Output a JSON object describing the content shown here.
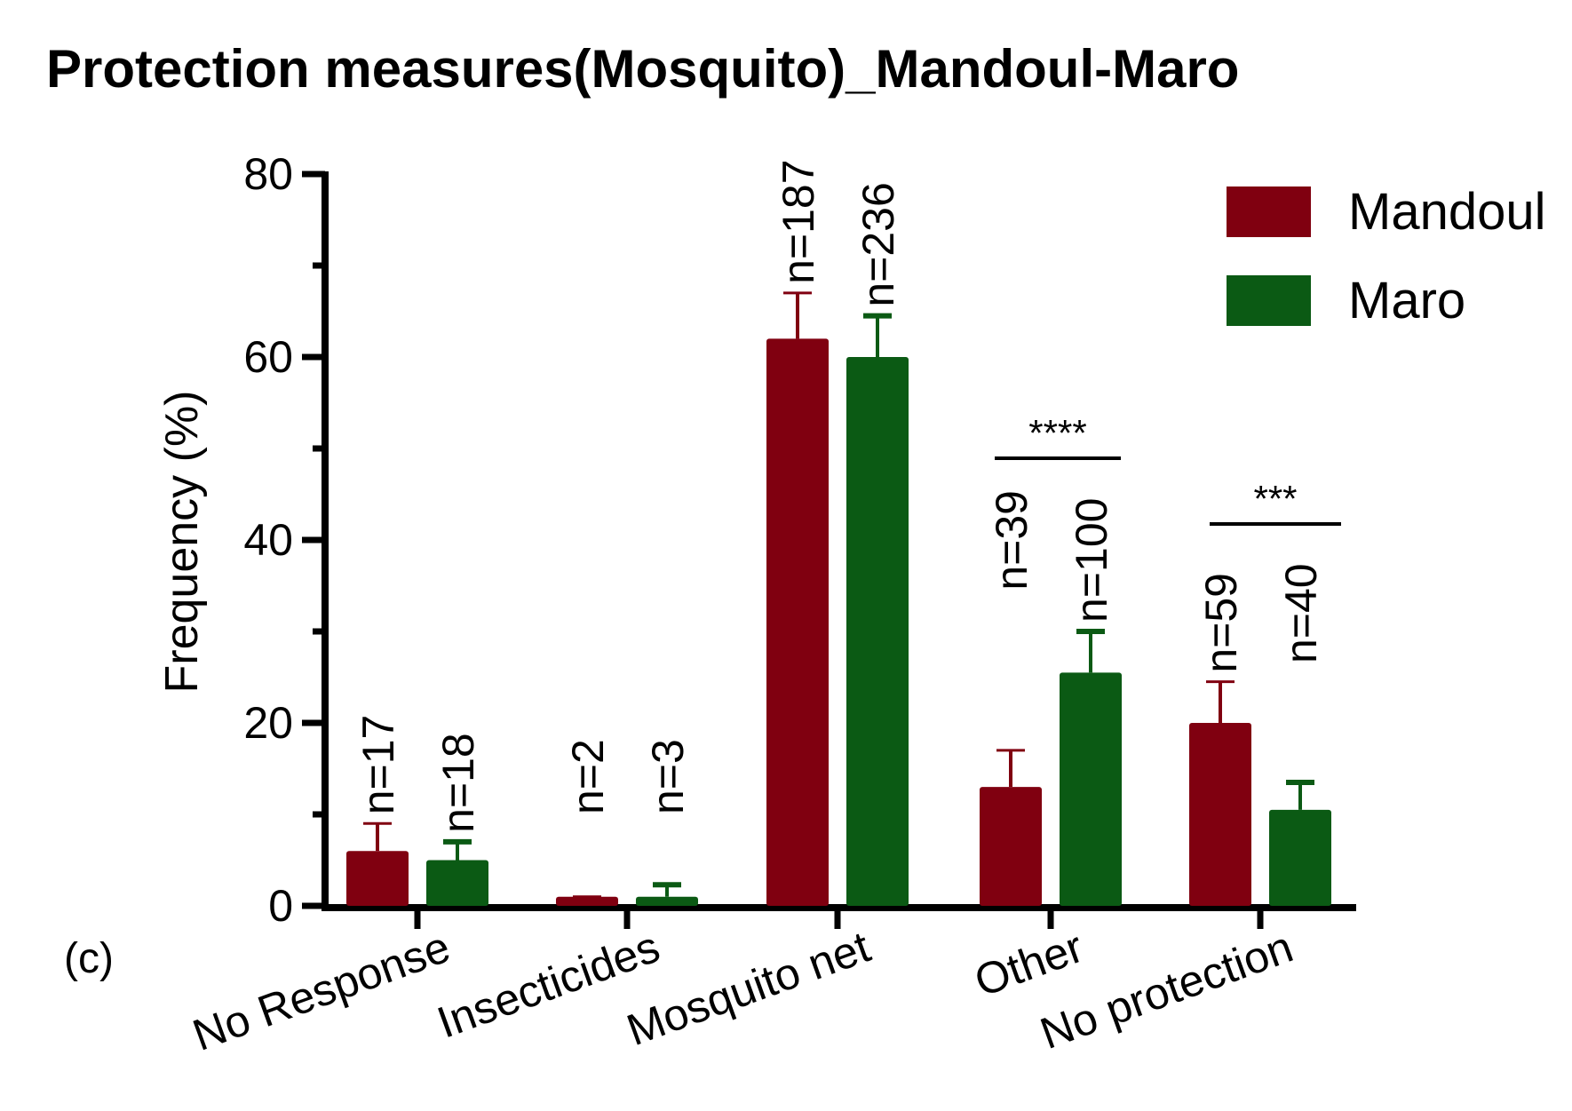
{
  "chart_data": {
    "type": "bar",
    "title": "Protection measures(Mosquito)_Mandoul-Maro",
    "panel_label": "(c)",
    "xlabel": "",
    "ylabel": "Frequency (%)",
    "ylim": [
      0,
      80
    ],
    "yticks": [
      0,
      20,
      40,
      60,
      80
    ],
    "categories": [
      "No Response",
      "Insecticides",
      "Mosquito net",
      "Other",
      "No protection"
    ],
    "legend_position": "top-right",
    "series": [
      {
        "name": "Mandoul",
        "color": "#800010",
        "values": [
          6,
          1,
          62,
          13,
          20
        ],
        "error_upper": [
          9,
          1,
          67,
          17,
          24.5
        ],
        "n_labels": [
          "n=17",
          "n=2",
          "n=187",
          "n=39",
          "n=59"
        ]
      },
      {
        "name": "Maro",
        "color": "#0b5a14",
        "values": [
          5,
          1,
          60,
          25.5,
          10.5
        ],
        "error_upper": [
          7,
          2.3,
          64.5,
          30,
          13.5
        ],
        "n_labels": [
          "n=18",
          "n=3",
          "n=236",
          "n=100",
          "n=40"
        ]
      }
    ],
    "significance": [
      {
        "category": "Other",
        "label": "****"
      },
      {
        "category": "No protection",
        "label": "***"
      }
    ]
  }
}
